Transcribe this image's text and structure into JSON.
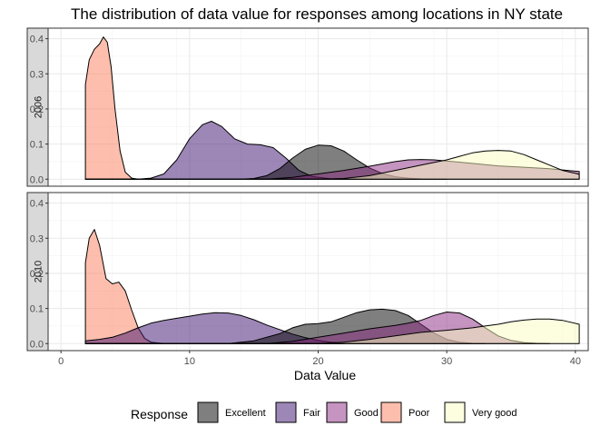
{
  "chart_data": {
    "type": "area",
    "subtype": "density",
    "title": "The distribution of data value for responses among locations in NY state",
    "xlabel": "Data Value",
    "ylabel": "",
    "xlim": [
      -1,
      41
    ],
    "ylim": [
      -0.02,
      0.43
    ],
    "x_ticks": [
      0,
      10,
      20,
      30,
      40
    ],
    "y_ticks": [
      0.0,
      0.1,
      0.2,
      0.3,
      0.4
    ],
    "x_tick_labels": [
      "0",
      "10",
      "20",
      "30",
      "40"
    ],
    "y_tick_labels": [
      "0.0",
      "0.1",
      "0.2",
      "0.3",
      "0.4"
    ],
    "grid": true,
    "legend": {
      "title": "Response",
      "position": "bottom",
      "entries": [
        {
          "name": "Excellent",
          "color": "#000000"
        },
        {
          "name": "Fair",
          "color": "#3B0F70"
        },
        {
          "name": "Good",
          "color": "#8C2981"
        },
        {
          "name": "Poor",
          "color": "#FE7E5C"
        },
        {
          "name": "Very good",
          "color": "#FCFDBF"
        }
      ]
    },
    "panels": [
      {
        "label": "2006",
        "series": [
          {
            "name": "Poor",
            "x": [
              1.9,
              2.2,
              2.6,
              3.0,
              3.3,
              3.6,
              3.9,
              4.2,
              4.6,
              5.0,
              5.5,
              6.0
            ],
            "y": [
              0.27,
              0.34,
              0.37,
              0.385,
              0.405,
              0.39,
              0.32,
              0.2,
              0.08,
              0.02,
              0.003,
              0.0
            ]
          },
          {
            "name": "Fair",
            "x": [
              1.9,
              6,
              7,
              8,
              9,
              10,
              11,
              11.7,
              12.5,
              13.5,
              14.5,
              15.5,
              16.5,
              17.5,
              18.5,
              19.5,
              21,
              23
            ],
            "y": [
              0.0,
              0.0,
              0.003,
              0.015,
              0.055,
              0.115,
              0.155,
              0.165,
              0.15,
              0.115,
              0.1,
              0.098,
              0.09,
              0.06,
              0.025,
              0.008,
              0.001,
              0.0
            ]
          },
          {
            "name": "Excellent",
            "x": [
              1.9,
              14,
              15,
              16,
              17,
              18,
              19,
              20,
              21,
              22,
              23,
              24,
              25,
              26,
              27,
              28,
              30
            ],
            "y": [
              0.0,
              0.0,
              0.002,
              0.01,
              0.03,
              0.06,
              0.085,
              0.097,
              0.095,
              0.08,
              0.055,
              0.032,
              0.016,
              0.007,
              0.003,
              0.001,
              0.0
            ]
          },
          {
            "name": "Good",
            "x": [
              1.9,
              16,
              18,
              20,
              22,
              24,
              26,
              27,
              28,
              29,
              30,
              32,
              34,
              36,
              38,
              40.3
            ],
            "y": [
              0.0,
              0.0,
              0.005,
              0.015,
              0.025,
              0.037,
              0.05,
              0.055,
              0.056,
              0.055,
              0.052,
              0.045,
              0.038,
              0.034,
              0.03,
              0.022
            ]
          },
          {
            "name": "Very good",
            "x": [
              1.9,
              20,
              22,
              24,
              26,
              28,
              30,
              31,
              32,
              33,
              34,
              35,
              36,
              37,
              38,
              39,
              40.3
            ],
            "y": [
              0.0,
              0.0,
              0.002,
              0.01,
              0.025,
              0.04,
              0.055,
              0.065,
              0.075,
              0.08,
              0.082,
              0.08,
              0.07,
              0.055,
              0.04,
              0.025,
              0.014
            ]
          }
        ]
      },
      {
        "label": "2010",
        "series": [
          {
            "name": "Poor",
            "x": [
              1.9,
              2.2,
              2.6,
              3.0,
              3.5,
              4.0,
              4.5,
              5.0,
              5.5,
              6.0,
              6.5,
              7.0,
              8.0
            ],
            "y": [
              0.23,
              0.3,
              0.325,
              0.28,
              0.185,
              0.17,
              0.175,
              0.15,
              0.095,
              0.045,
              0.015,
              0.004,
              0.0
            ]
          },
          {
            "name": "Fair",
            "x": [
              1.9,
              3,
              4,
              5,
              6,
              7,
              8,
              9,
              10,
              11,
              12,
              13,
              14,
              15,
              16,
              17,
              18,
              19,
              20,
              21,
              22
            ],
            "y": [
              0.008,
              0.012,
              0.018,
              0.03,
              0.045,
              0.058,
              0.066,
              0.072,
              0.078,
              0.084,
              0.088,
              0.087,
              0.08,
              0.068,
              0.053,
              0.04,
              0.027,
              0.017,
              0.009,
              0.004,
              0.001
            ]
          },
          {
            "name": "Excellent",
            "x": [
              1.9,
              13,
              15,
              17,
              18,
              19,
              20,
              21,
              22,
              23,
              24,
              25,
              26,
              27,
              28,
              29,
              30,
              31,
              32,
              33
            ],
            "y": [
              0.0,
              0.0,
              0.008,
              0.028,
              0.045,
              0.055,
              0.057,
              0.062,
              0.075,
              0.088,
              0.096,
              0.098,
              0.094,
              0.08,
              0.055,
              0.03,
              0.012,
              0.004,
              0.001,
              0.0
            ]
          },
          {
            "name": "Good",
            "x": [
              1.9,
              16,
              18,
              20,
              22,
              24,
              26,
              27,
              28,
              29,
              30,
              31,
              32,
              33,
              34,
              35,
              36,
              37,
              38
            ],
            "y": [
              0.0,
              0.0,
              0.006,
              0.018,
              0.03,
              0.042,
              0.052,
              0.058,
              0.066,
              0.08,
              0.09,
              0.087,
              0.07,
              0.045,
              0.022,
              0.009,
              0.003,
              0.001,
              0.0
            ]
          },
          {
            "name": "Very good",
            "x": [
              1.9,
              20,
              22,
              24,
              26,
              28,
              30,
              32,
              33,
              34,
              35,
              36,
              37,
              38,
              39,
              40.3
            ],
            "y": [
              0.0,
              0.0,
              0.004,
              0.012,
              0.022,
              0.032,
              0.038,
              0.045,
              0.05,
              0.055,
              0.062,
              0.067,
              0.07,
              0.07,
              0.066,
              0.055
            ]
          }
        ]
      }
    ]
  }
}
